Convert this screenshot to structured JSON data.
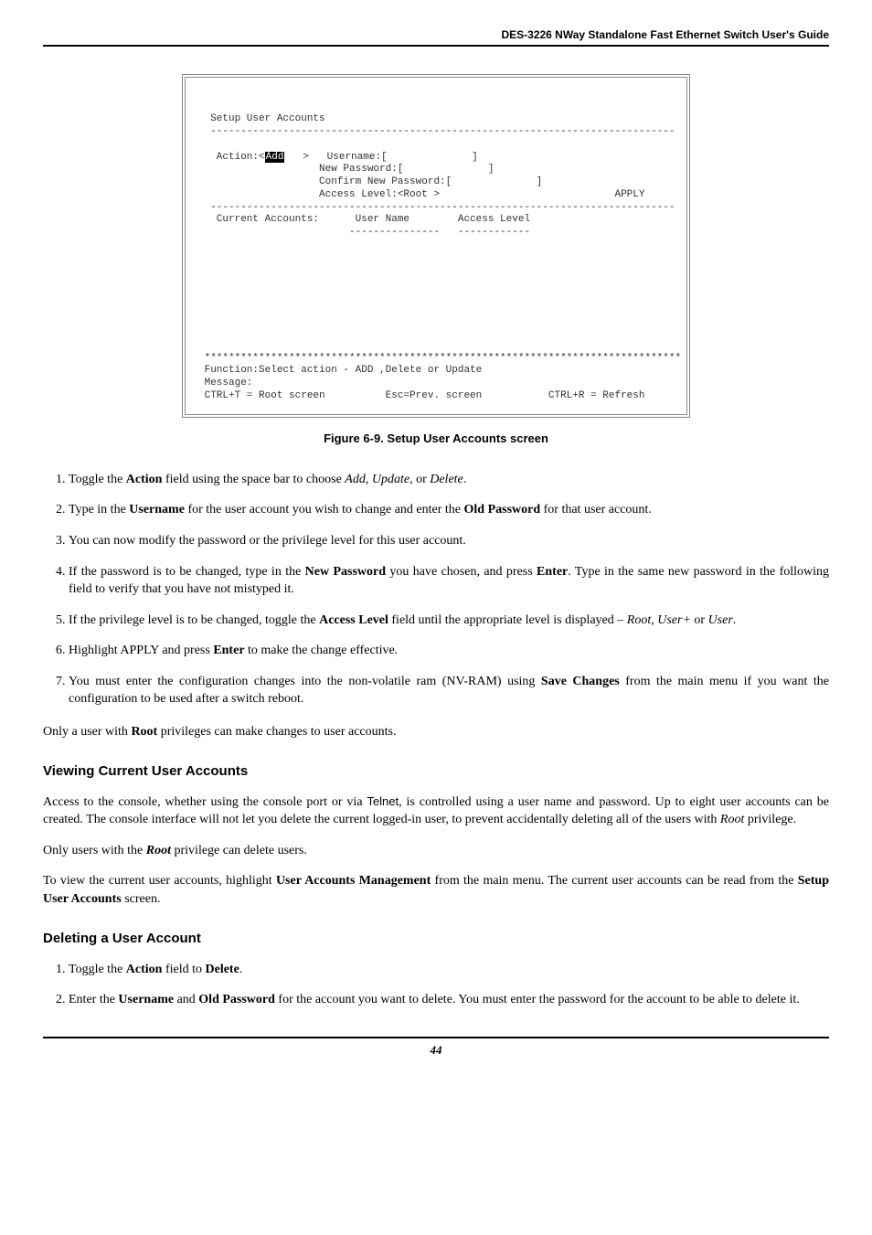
{
  "header": {
    "title": "DES-3226 NWay Standalone Fast Ethernet Switch User's Guide"
  },
  "terminal": {
    "line_setup": "  Setup User Accounts",
    "dash1": "  -----------------------------------------------------------------------------",
    "action_left": "   Action:<",
    "action_hl": "Add",
    "action_right": "   >   Username:[              ]",
    "newpass": "                    New Password:[              ]",
    "confpass": "                    Confirm New Password:[              ]",
    "access": "                    Access Level:<Root >                             APPLY",
    "dash2": "  -----------------------------------------------------------------------------",
    "cols": "   Current Accounts:      User Name        Access Level",
    "underline": "                         ---------------   ------------",
    "blank": " ",
    "stars": " *******************************************************************************",
    "func": " Function:Select action - ADD ,Delete or Update",
    "msg": " Message:",
    "foot": " CTRL+T = Root screen          Esc=Prev. screen           CTRL+R = Refresh"
  },
  "figureCaption": "Figure 6-9.  Setup User Accounts screen",
  "list1": {
    "i1a": "Toggle the ",
    "i1b": "Action",
    "i1c": " field using the space bar to choose ",
    "i1d": "Add",
    "i1e": ", ",
    "i1f": "Update",
    "i1g": ", or ",
    "i1h": "Delete",
    "i1i": ".",
    "i2a": "Type in the ",
    "i2b": "Username",
    "i2c": " for the user account you wish to change and enter the ",
    "i2d": "Old Password",
    "i2e": " for that user account.",
    "i3": "You can now modify the password or the privilege level for this user account.",
    "i4a": "If the password is to be changed, type in the ",
    "i4b": "New Password",
    "i4c": " you have chosen, and press ",
    "i4d": "Enter",
    "i4e": ". Type in the same new password in the following field to verify that you have not mistyped it.",
    "i5a": "If the privilege level is to be changed, toggle the ",
    "i5b": "Access Level",
    "i5c": " field until the appropriate level is displayed – ",
    "i5d": "Root",
    "i5e": ", ",
    "i5f": "User+",
    "i5g": " or ",
    "i5h": "User",
    "i5i": ".",
    "i6a": "Highlight APPLY and press ",
    "i6b": "Enter",
    "i6c": " to make the change effective",
    "i6d": ".",
    "i7a": "You must enter the configuration changes into the non-volatile ram (NV-RAM) using ",
    "i7b": "Save Changes",
    "i7c": " from the main menu if you want the configuration to be used after a switch reboot."
  },
  "p1a": "Only a user with ",
  "p1b": "Root",
  "p1c": " privileges can make changes to user accounts.",
  "h1": "Viewing Current User Accounts",
  "p2a": "Access to the console, whether using the console port or via ",
  "p2a2": "Telnet",
  "p2a3": ", is controlled using a user name and password. Up to eight user accounts can be created. The console interface will not let you delete the current logged-in user, to prevent accidentally deleting all of the users with ",
  "p2b": "Root",
  "p2c": " privilege.",
  "p3a": "Only users with the ",
  "p3b": "Root",
  "p3c": " privilege can delete users.",
  "p4a": "To view the current user accounts, highlight ",
  "p4b": "User Accounts Management",
  "p4c": " from the main menu. The current user accounts can be read from the ",
  "p4d": "Setup User Accounts",
  "p4e": " screen.",
  "h2": "Deleting a User Account",
  "list2": {
    "i1a": "Toggle the ",
    "i1b": "Action",
    "i1c": " field to ",
    "i1d": "Delete",
    "i1e": ".",
    "i2a": "Enter the ",
    "i2b": "Username",
    "i2c": " and ",
    "i2d": "Old Password",
    "i2e": " for the account you want to delete. You must enter the password for the account to be able to delete it."
  },
  "footer": "44"
}
